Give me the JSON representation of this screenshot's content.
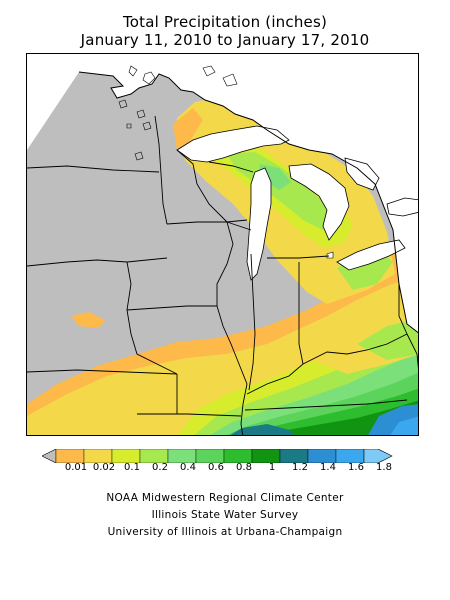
{
  "title": {
    "line1": "Total Precipitation (inches)",
    "line2": "January 11, 2010 to January 17, 2010"
  },
  "legend": {
    "labels": [
      "0.01",
      "0.02",
      "0.1",
      "0.2",
      "0.4",
      "0.6",
      "0.8",
      "1",
      "1.2",
      "1.4",
      "1.6",
      "1.8"
    ],
    "colors": [
      "#fdb94a",
      "#f3d94a",
      "#d6ec2c",
      "#a6e84e",
      "#7be07a",
      "#5cd45c",
      "#2ebd2e",
      "#119411",
      "#1a7a85",
      "#2d8fd3",
      "#3aa7ef",
      "#7ecaf6"
    ],
    "no_data_color": "#bebebe"
  },
  "credits": {
    "line1": "NOAA Midwestern Regional Climate Center",
    "line2": "Illinois State Water Survey",
    "line3": "University of Illinois at Urbana-Champaign"
  }
}
